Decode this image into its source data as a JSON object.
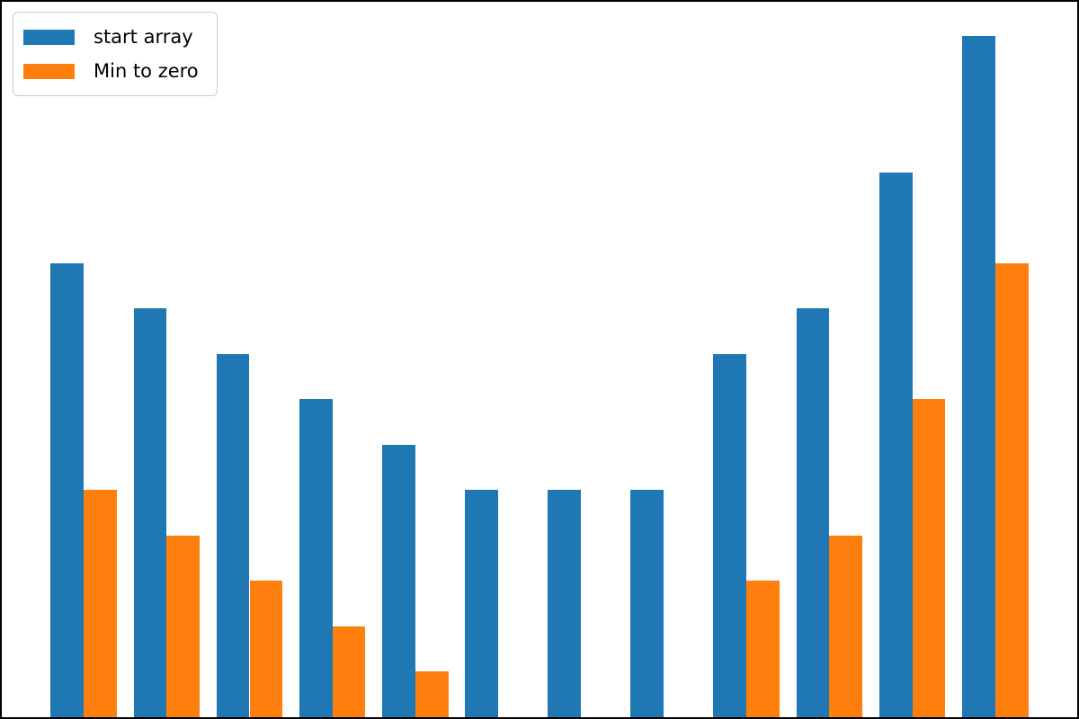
{
  "chart_data": {
    "type": "bar",
    "title": "",
    "xlabel": "",
    "ylabel": "",
    "x": [
      0,
      1,
      2,
      3,
      4,
      5,
      6,
      7,
      8,
      9,
      10,
      11
    ],
    "series": [
      {
        "name": "start array",
        "color": "#1f77b4",
        "offset": -0.4,
        "values": [
          10,
          9,
          8,
          7,
          6,
          5,
          5,
          5,
          8,
          9,
          12,
          15
        ]
      },
      {
        "name": "Min to zero",
        "color": "#ff7f0e",
        "offset": 0,
        "values": [
          5,
          4,
          3,
          2,
          1,
          0,
          0,
          0,
          3,
          4,
          7,
          10
        ]
      }
    ],
    "bar_width": 0.4,
    "xlim": [
      -0.99,
      11.99
    ],
    "ylim": [
      0,
      15.75
    ],
    "grid": false,
    "ticks": "none",
    "frame_color": "#000000",
    "legend": {
      "position": "upper-left",
      "border_color": "#cccccc",
      "background": "#ffffff"
    }
  }
}
